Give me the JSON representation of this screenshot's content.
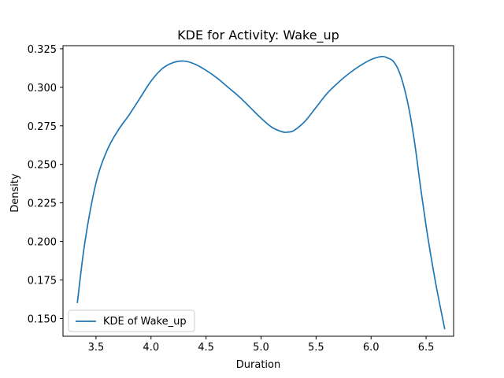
{
  "chart_data": {
    "type": "line",
    "title": "KDE for Activity: Wake_up",
    "xlabel": "Duration",
    "ylabel": "Density",
    "xlim": [
      3.2,
      6.75
    ],
    "ylim": [
      0.1385,
      0.327
    ],
    "xticks": [
      3.5,
      4.0,
      4.5,
      5.0,
      5.5,
      6.0,
      6.5
    ],
    "xtick_labels": [
      "3.5",
      "4.0",
      "4.5",
      "5.0",
      "5.5",
      "6.0",
      "6.5"
    ],
    "yticks": [
      0.15,
      0.175,
      0.2,
      0.225,
      0.25,
      0.275,
      0.3,
      0.325
    ],
    "ytick_labels": [
      "0.150",
      "0.175",
      "0.200",
      "0.225",
      "0.250",
      "0.275",
      "0.300",
      "0.325"
    ],
    "grid": false,
    "legend_position": "lower-left",
    "series": [
      {
        "name": "KDE of Wake_up",
        "color": "#1f77b4",
        "x": [
          3.33,
          3.4,
          3.5,
          3.6,
          3.7,
          3.8,
          3.9,
          4.0,
          4.1,
          4.2,
          4.3,
          4.4,
          4.5,
          4.6,
          4.7,
          4.8,
          4.9,
          5.0,
          5.1,
          5.2,
          5.25,
          5.3,
          5.4,
          5.5,
          5.6,
          5.7,
          5.8,
          5.9,
          6.0,
          6.1,
          6.15,
          6.2,
          6.25,
          6.3,
          6.35,
          6.4,
          6.45,
          6.5,
          6.55,
          6.6,
          6.67
        ],
        "y": [
          0.16,
          0.2,
          0.238,
          0.259,
          0.272,
          0.282,
          0.293,
          0.304,
          0.312,
          0.316,
          0.317,
          0.315,
          0.311,
          0.306,
          0.3,
          0.294,
          0.287,
          0.28,
          0.274,
          0.271,
          0.271,
          0.272,
          0.278,
          0.287,
          0.296,
          0.303,
          0.309,
          0.314,
          0.318,
          0.32,
          0.319,
          0.317,
          0.311,
          0.3,
          0.284,
          0.262,
          0.235,
          0.21,
          0.188,
          0.168,
          0.143
        ]
      }
    ]
  }
}
